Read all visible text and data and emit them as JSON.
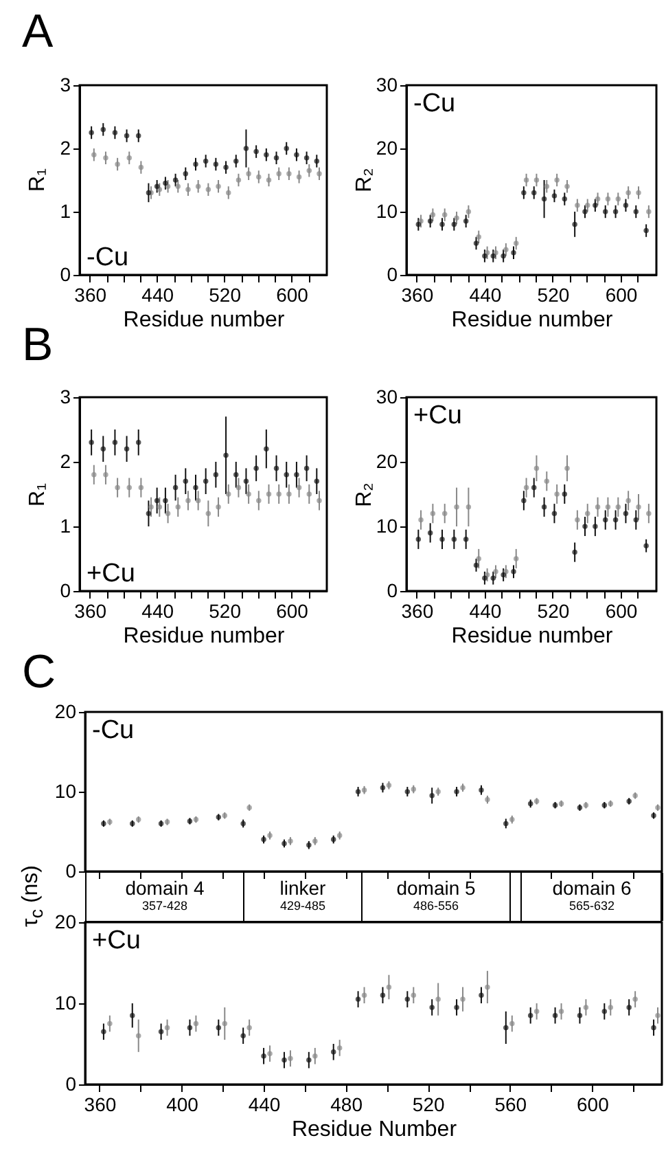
{
  "chart_data": [
    {
      "type": "scatter",
      "title": "A",
      "ylabel": "R₁",
      "xlim": [
        348,
        642
      ],
      "xticks": [
        360,
        {
          "value": 380,
          "label": null
        },
        {
          "value": 400,
          "label": null
        },
        {
          "value": 420,
          "label": null
        },
        440,
        {
          "value": 460,
          "label": null
        },
        {
          "value": 480,
          "label": null
        },
        {
          "value": 500,
          "label": null
        },
        520,
        {
          "value": 540,
          "label": null
        },
        {
          "value": 560,
          "label": null
        },
        {
          "value": 580,
          "label": null
        },
        600,
        {
          "value": 620,
          "label": null
        }
      ],
      "ylim": [
        0,
        3
      ],
      "yticks": [
        0,
        1,
        2,
        3
      ],
      "xlabel": "Residue number",
      "annotations": [
        "-Cu"
      ],
      "marker": "circle",
      "grid": false,
      "legend": false,
      "x": [
        362,
        376,
        390,
        404,
        418,
        430,
        440,
        450,
        462,
        474,
        486,
        498,
        510,
        522,
        534,
        546,
        558,
        570,
        582,
        594,
        606,
        618,
        630
      ],
      "series": [
        {
          "color": "#888888",
          "x": [
            365,
            379,
            393,
            407,
            421,
            433,
            443,
            453,
            465,
            477,
            489,
            501,
            513,
            525,
            537,
            549,
            561,
            573,
            585,
            597,
            609,
            621,
            633
          ],
          "values": [
            1.9,
            1.85,
            1.75,
            1.85,
            1.7,
            1.3,
            1.35,
            1.4,
            1.4,
            1.35,
            1.4,
            1.35,
            1.4,
            1.3,
            1.5,
            1.6,
            1.55,
            1.5,
            1.6,
            1.6,
            1.55,
            1.65,
            1.6
          ],
          "errors": [
            0.1,
            0.1,
            0.1,
            0.1,
            0.1,
            0.1,
            0.1,
            0.1,
            0.1,
            0.1,
            0.1,
            0.1,
            0.1,
            0.1,
            0.1,
            0.1,
            0.1,
            0.1,
            0.1,
            0.1,
            0.1,
            0.1,
            0.1
          ]
        },
        {
          "color": "#111111",
          "values": [
            2.25,
            2.3,
            2.25,
            2.2,
            2.2,
            1.3,
            1.4,
            1.45,
            1.5,
            1.6,
            1.75,
            1.8,
            1.75,
            1.7,
            1.8,
            2.0,
            1.95,
            1.9,
            1.85,
            2.0,
            1.9,
            1.85,
            1.8
          ],
          "errors": [
            0.1,
            0.1,
            0.1,
            0.1,
            0.1,
            0.15,
            0.1,
            0.1,
            0.1,
            0.1,
            0.1,
            0.1,
            0.1,
            0.1,
            0.1,
            0.3,
            0.1,
            0.1,
            0.1,
            0.1,
            0.1,
            0.1,
            0.1
          ]
        }
      ]
    },
    {
      "type": "scatter",
      "ylabel": "R₂",
      "xlim": [
        348,
        642
      ],
      "xticks": [
        360,
        {
          "value": 380,
          "label": null
        },
        {
          "value": 400,
          "label": null
        },
        {
          "value": 420,
          "label": null
        },
        440,
        {
          "value": 460,
          "label": null
        },
        {
          "value": 480,
          "label": null
        },
        {
          "value": 500,
          "label": null
        },
        520,
        {
          "value": 540,
          "label": null
        },
        {
          "value": 560,
          "label": null
        },
        {
          "value": 580,
          "label": null
        },
        600,
        {
          "value": 620,
          "label": null
        }
      ],
      "ylim": [
        0,
        30
      ],
      "yticks": [
        0,
        10,
        20,
        30
      ],
      "xlabel": "Residue number",
      "annotations": [
        "-Cu"
      ],
      "marker": "circle",
      "grid": false,
      "x": [
        362,
        376,
        390,
        404,
        418,
        430,
        440,
        450,
        462,
        474,
        486,
        498,
        510,
        522,
        534,
        546,
        558,
        570,
        582,
        594,
        606,
        618,
        630
      ],
      "series": [
        {
          "color": "#888888",
          "x": [
            365,
            379,
            393,
            407,
            421,
            433,
            443,
            453,
            465,
            477,
            489,
            501,
            513,
            525,
            537,
            549,
            561,
            573,
            585,
            597,
            609,
            621,
            633
          ],
          "values": [
            8.5,
            9.5,
            9.5,
            9,
            10,
            6,
            3.5,
            3.5,
            4,
            5,
            15,
            15,
            14,
            15,
            14,
            11,
            11,
            12,
            12,
            12,
            13,
            13,
            10
          ],
          "errors": [
            1,
            1,
            1,
            1,
            1,
            1,
            1,
            1,
            1,
            1,
            1,
            1,
            1,
            1,
            1,
            1,
            1,
            1,
            1,
            1,
            1,
            1,
            1
          ]
        },
        {
          "color": "#111111",
          "values": [
            8,
            8.5,
            8,
            8,
            8.5,
            5,
            3,
            3,
            3,
            3.5,
            13,
            13,
            12,
            12.5,
            12,
            8,
            10,
            11,
            10,
            10,
            11,
            10,
            7
          ],
          "errors": [
            1,
            1,
            1,
            1,
            1,
            1,
            1,
            1,
            1,
            1,
            1,
            1,
            3,
            1,
            1,
            2,
            1,
            1,
            1,
            1,
            1,
            1,
            1
          ]
        }
      ]
    },
    {
      "type": "scatter",
      "title": "B",
      "ylabel": "R₁",
      "xlim": [
        348,
        642
      ],
      "xticks": [
        360,
        {
          "value": 380,
          "label": null
        },
        {
          "value": 400,
          "label": null
        },
        {
          "value": 420,
          "label": null
        },
        440,
        {
          "value": 460,
          "label": null
        },
        {
          "value": 480,
          "label": null
        },
        {
          "value": 500,
          "label": null
        },
        520,
        {
          "value": 540,
          "label": null
        },
        {
          "value": 560,
          "label": null
        },
        {
          "value": 580,
          "label": null
        },
        600,
        {
          "value": 620,
          "label": null
        }
      ],
      "ylim": [
        0,
        3
      ],
      "yticks": [
        0,
        1,
        2,
        3
      ],
      "xlabel": "Residue number",
      "annotations": [
        "+Cu"
      ],
      "marker": "circle",
      "grid": false,
      "x": [
        362,
        376,
        390,
        404,
        418,
        430,
        440,
        450,
        462,
        474,
        486,
        498,
        510,
        522,
        534,
        546,
        558,
        570,
        582,
        594,
        606,
        618,
        630
      ],
      "series": [
        {
          "color": "#888888",
          "x": [
            365,
            379,
            393,
            407,
            421,
            433,
            443,
            453,
            465,
            477,
            489,
            501,
            513,
            525,
            537,
            549,
            561,
            573,
            585,
            597,
            609,
            621,
            633
          ],
          "values": [
            1.8,
            1.8,
            1.6,
            1.6,
            1.6,
            1.3,
            1.3,
            1.2,
            1.3,
            1.4,
            1.4,
            1.2,
            1.3,
            1.5,
            1.6,
            1.5,
            1.4,
            1.5,
            1.5,
            1.5,
            1.6,
            1.5,
            1.4
          ],
          "errors": [
            0.15,
            0.15,
            0.15,
            0.15,
            0.15,
            0.15,
            0.15,
            0.15,
            0.15,
            0.15,
            0.15,
            0.2,
            0.15,
            0.15,
            0.15,
            0.15,
            0.15,
            0.15,
            0.15,
            0.15,
            0.15,
            0.15,
            0.15
          ]
        },
        {
          "color": "#111111",
          "values": [
            2.3,
            2.2,
            2.3,
            2.2,
            2.3,
            1.2,
            1.4,
            1.4,
            1.6,
            1.7,
            1.6,
            1.7,
            1.8,
            2.1,
            1.8,
            1.7,
            1.9,
            2.2,
            1.9,
            1.8,
            1.8,
            1.9,
            1.7
          ],
          "errors": [
            0.2,
            0.2,
            0.2,
            0.2,
            0.2,
            0.2,
            0.2,
            0.2,
            0.2,
            0.2,
            0.2,
            0.2,
            0.2,
            0.6,
            0.2,
            0.2,
            0.2,
            0.3,
            0.2,
            0.2,
            0.2,
            0.2,
            0.2
          ]
        }
      ]
    },
    {
      "type": "scatter",
      "ylabel": "R₂",
      "xlim": [
        348,
        642
      ],
      "xticks": [
        360,
        {
          "value": 380,
          "label": null
        },
        {
          "value": 400,
          "label": null
        },
        {
          "value": 420,
          "label": null
        },
        440,
        {
          "value": 460,
          "label": null
        },
        {
          "value": 480,
          "label": null
        },
        {
          "value": 500,
          "label": null
        },
        520,
        {
          "value": 540,
          "label": null
        },
        {
          "value": 560,
          "label": null
        },
        {
          "value": 580,
          "label": null
        },
        600,
        {
          "value": 620,
          "label": null
        }
      ],
      "ylim": [
        0,
        30
      ],
      "yticks": [
        0,
        10,
        20,
        30
      ],
      "xlabel": "Residue number",
      "annotations": [
        "+Cu"
      ],
      "marker": "circle",
      "grid": false,
      "x": [
        362,
        376,
        390,
        404,
        418,
        430,
        440,
        450,
        462,
        474,
        486,
        498,
        510,
        522,
        534,
        546,
        558,
        570,
        582,
        594,
        606,
        618,
        630
      ],
      "series": [
        {
          "color": "#888888",
          "x": [
            365,
            379,
            393,
            407,
            421,
            433,
            443,
            453,
            465,
            477,
            489,
            501,
            513,
            525,
            537,
            549,
            561,
            573,
            585,
            597,
            609,
            621,
            633
          ],
          "values": [
            11,
            12,
            12,
            13,
            13,
            5,
            2.5,
            3,
            3,
            5,
            16,
            19,
            17,
            15,
            19,
            11,
            12,
            13,
            13,
            13,
            14,
            13,
            12
          ],
          "errors": [
            1.5,
            1.5,
            1.5,
            3,
            3,
            1.5,
            1,
            1,
            1,
            1.5,
            1.5,
            2,
            1.5,
            1.5,
            2,
            1.5,
            1.5,
            1.5,
            1.5,
            1.5,
            1.5,
            2,
            1.5
          ]
        },
        {
          "color": "#111111",
          "values": [
            8,
            9,
            8,
            8,
            8,
            4,
            2,
            2,
            2.5,
            3,
            14,
            16,
            13,
            12,
            15,
            6,
            10,
            10,
            11,
            11,
            12,
            11,
            7
          ],
          "errors": [
            1.5,
            1.5,
            1.5,
            1.5,
            1.5,
            1,
            1,
            1,
            1,
            1,
            1.5,
            1.5,
            1.5,
            1.5,
            1.5,
            1.5,
            1.5,
            1.5,
            1.5,
            1.5,
            1.5,
            1.5,
            1
          ]
        }
      ]
    },
    {
      "type": "scatter",
      "title": "C",
      "ylabel": "τ$_{c}$ (ns)",
      "tick_labels": "y",
      "xlim": [
        353,
        634
      ],
      "xticks": [
        {
          "value": 360,
          "label": null
        },
        {
          "value": 380,
          "label": null
        },
        {
          "value": 400,
          "label": null
        },
        {
          "value": 420,
          "label": null
        },
        {
          "value": 440,
          "label": null
        },
        {
          "value": 460,
          "label": null
        },
        {
          "value": 480,
          "label": null
        },
        {
          "value": 500,
          "label": null
        },
        {
          "value": 520,
          "label": null
        },
        {
          "value": 540,
          "label": null
        },
        {
          "value": 560,
          "label": null
        },
        {
          "value": 580,
          "label": null
        },
        {
          "value": 600,
          "label": null
        },
        {
          "value": 620,
          "label": null
        }
      ],
      "ylim": [
        0,
        20
      ],
      "yticks": [
        0,
        10,
        20
      ],
      "annotations": [
        "-Cu"
      ],
      "marker": "circle",
      "grid": false,
      "x": [
        362,
        376,
        390,
        404,
        418,
        430,
        440,
        450,
        462,
        474,
        486,
        498,
        510,
        522,
        534,
        546,
        558,
        570,
        582,
        594,
        606,
        618,
        630
      ],
      "series": [
        {
          "color": "#888888",
          "x": [
            365,
            379,
            393,
            407,
            421,
            433,
            443,
            453,
            465,
            477,
            489,
            501,
            513,
            525,
            537,
            549,
            561,
            573,
            585,
            597,
            609,
            621,
            632
          ],
          "values": [
            6.2,
            6.5,
            6.2,
            6.5,
            7,
            8,
            4.5,
            3.8,
            3.8,
            4.5,
            10.2,
            10.8,
            10.3,
            10,
            10.5,
            9,
            6.5,
            8.8,
            8.5,
            8.3,
            8.5,
            9.5,
            8
          ],
          "errors": [
            0.4,
            0.4,
            0.4,
            0.4,
            0.4,
            0.4,
            0.5,
            0.5,
            0.5,
            0.5,
            0.5,
            0.5,
            0.5,
            0.5,
            0.5,
            0.5,
            0.5,
            0.4,
            0.4,
            0.4,
            0.4,
            0.4,
            0.4
          ]
        },
        {
          "color": "#111111",
          "values": [
            6,
            6,
            6,
            6.3,
            6.8,
            6,
            4,
            3.5,
            3.3,
            4,
            10,
            10.5,
            10,
            9.5,
            10,
            10.2,
            6,
            8.5,
            8.3,
            8,
            8.3,
            8.8,
            7
          ],
          "errors": [
            0.4,
            0.4,
            0.4,
            0.4,
            0.4,
            0.5,
            0.5,
            0.5,
            0.5,
            0.5,
            0.6,
            0.6,
            0.6,
            1,
            0.6,
            0.6,
            0.6,
            0.5,
            0.4,
            0.4,
            0.4,
            0.4,
            0.4
          ]
        }
      ]
    },
    {
      "type": "other",
      "annotations": [
        "domain 4",
        "357-428",
        "linker",
        "429-485",
        "domain 5",
        "486-556",
        "domain 6",
        "565-632"
      ]
    },
    {
      "type": "scatter",
      "xlabel": "Residue Number",
      "xlim": [
        353,
        634
      ],
      "xticks": [
        360,
        {
          "value": 380,
          "label": null
        },
        400,
        {
          "value": 420,
          "label": null
        },
        440,
        {
          "value": 460,
          "label": null
        },
        480,
        {
          "value": 500,
          "label": null
        },
        520,
        {
          "value": 540,
          "label": null
        },
        560,
        {
          "value": 580,
          "label": null
        },
        600,
        {
          "value": 620,
          "label": null
        }
      ],
      "ylim": [
        0,
        20
      ],
      "yticks": [
        0,
        10,
        20
      ],
      "annotations": [
        "+Cu"
      ],
      "marker": "circle",
      "grid": false,
      "x": [
        362,
        376,
        390,
        404,
        418,
        430,
        440,
        450,
        462,
        474,
        486,
        498,
        510,
        522,
        534,
        546,
        558,
        570,
        582,
        594,
        606,
        618,
        630
      ],
      "series": [
        {
          "color": "#888888",
          "x": [
            365,
            379,
            393,
            407,
            421,
            433,
            443,
            453,
            465,
            477,
            489,
            501,
            513,
            525,
            537,
            549,
            561,
            573,
            585,
            597,
            609,
            621,
            632
          ],
          "values": [
            7.5,
            6,
            7,
            7.5,
            7.5,
            7,
            3.8,
            3.2,
            3.5,
            4.5,
            11,
            12,
            11,
            10.5,
            10.5,
            12,
            7.5,
            9,
            9,
            9.5,
            9.5,
            10.5,
            8.5
          ],
          "errors": [
            1,
            2,
            1,
            1,
            2,
            1,
            1,
            1,
            1,
            1,
            1,
            1.5,
            1,
            2,
            1.5,
            2,
            1,
            1,
            1,
            1,
            1,
            1,
            1
          ]
        },
        {
          "color": "#111111",
          "values": [
            6.5,
            8.5,
            6.5,
            7,
            7,
            6,
            3.5,
            3,
            3,
            4,
            10.5,
            11,
            10.5,
            9.5,
            9.5,
            11,
            7,
            8.5,
            8.5,
            8.5,
            9,
            9.5,
            7
          ],
          "errors": [
            1,
            1.5,
            1,
            1,
            1,
            1,
            1,
            1,
            1,
            1,
            1,
            1,
            1,
            1,
            1,
            1,
            2,
            1,
            1,
            1,
            1,
            1,
            1
          ]
        }
      ]
    }
  ]
}
